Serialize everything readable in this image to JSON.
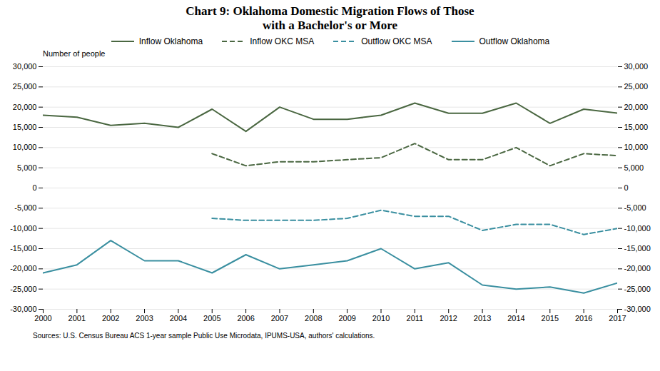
{
  "chart_data": {
    "type": "line",
    "title": "Chart 9: Oklahoma Domestic Migration Flows of Those\nwith a Bachelor's or More",
    "subtitle": "Number of people",
    "caption": "Sources: U.S. Census Bureau ACS 1-year sample Public Use Microdata, IPUMS-USA, authors' calculations.",
    "x": [
      2000,
      2001,
      2002,
      2003,
      2004,
      2005,
      2006,
      2007,
      2008,
      2009,
      2010,
      2011,
      2012,
      2013,
      2014,
      2015,
      2016,
      2017
    ],
    "series": [
      {
        "name": "Inflow Oklahoma",
        "color": "#4a6741",
        "line_style": "solid",
        "values": [
          18000,
          17500,
          15500,
          16000,
          15000,
          19500,
          14000,
          20000,
          17000,
          17000,
          18000,
          21000,
          18500,
          18500,
          21000,
          16000,
          19500,
          18500
        ]
      },
      {
        "name": "Inflow OKC MSA",
        "color": "#4a6741",
        "line_style": "dashed",
        "values": [
          null,
          null,
          null,
          null,
          null,
          8500,
          5500,
          6500,
          6500,
          7000,
          7500,
          11000,
          7000,
          7000,
          10000,
          5500,
          8500,
          8000
        ]
      },
      {
        "name": "Outflow OKC MSA",
        "color": "#3a8fa0",
        "line_style": "dashed",
        "values": [
          null,
          null,
          null,
          null,
          null,
          -7500,
          -8000,
          -8000,
          -8000,
          -7500,
          -5500,
          -7000,
          -7000,
          -10500,
          -9000,
          -9000,
          -11500,
          -10000
        ]
      },
      {
        "name": "Outflow Oklahoma",
        "color": "#3a8fa0",
        "line_style": "solid",
        "values": [
          -21000,
          -19000,
          -13000,
          -18000,
          -18000,
          -21000,
          -16500,
          -20000,
          -19000,
          -18000,
          -15000,
          -20000,
          -18500,
          -24000,
          -25000,
          -24500,
          -26000,
          -23500
        ]
      }
    ],
    "xlim": [
      2000,
      2017
    ],
    "xticks": [
      2000,
      2001,
      2002,
      2003,
      2004,
      2005,
      2006,
      2007,
      2008,
      2009,
      2010,
      2011,
      2012,
      2013,
      2014,
      2015,
      2016,
      2017
    ],
    "ylim": [
      -30000,
      30000
    ],
    "yticks": [
      {
        "value": -30000,
        "label": "-30,000"
      },
      {
        "value": -25000,
        "label": "-25,000"
      },
      {
        "value": -20000,
        "label": "-20,000"
      },
      {
        "value": -15000,
        "label": "-15,000"
      },
      {
        "value": -10000,
        "label": "-10,000"
      },
      {
        "value": -5000,
        "label": "-5,000"
      },
      0,
      {
        "value": 5000,
        "label": "5,000"
      },
      {
        "value": 10000,
        "label": "10,000"
      },
      {
        "value": 15000,
        "label": "15,000"
      },
      {
        "value": 20000,
        "label": "20,000"
      },
      {
        "value": 25000,
        "label": "25,000"
      },
      {
        "value": 30000,
        "label": "30,000"
      }
    ],
    "grid": true,
    "legend": "top"
  }
}
